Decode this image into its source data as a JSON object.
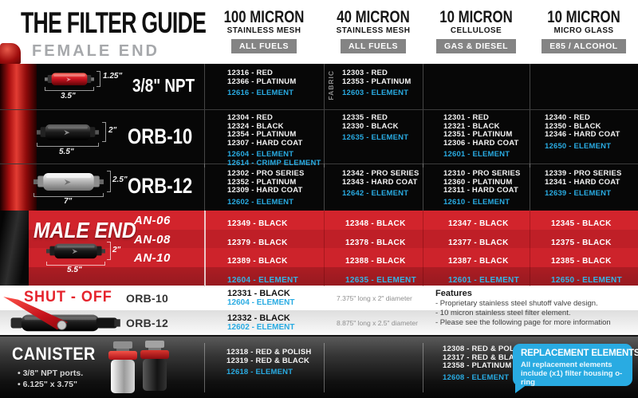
{
  "header": {
    "title": "THE FILTER GUIDE",
    "subtitle": "FEMALE END",
    "columns": [
      {
        "micron": "100 MICRON",
        "media": "STAINLESS MESH",
        "badge": "ALL FUELS"
      },
      {
        "micron": "40 MICRON",
        "media": "STAINLESS MESH",
        "badge": "ALL FUELS"
      },
      {
        "micron": "10 MICRON",
        "media": "CELLULOSE",
        "badge": "GAS & DIESEL"
      },
      {
        "micron": "10 MICRON",
        "media": "MICRO GLASS",
        "badge": "E85 / ALCOHOL"
      }
    ]
  },
  "female_rows": [
    {
      "label": "3/8\" NPT",
      "dim_height": "1.25\"",
      "dim_length": "3.5\"",
      "cells": [
        {
          "parts": [
            "12316 - RED",
            "12366 - PLATINUM"
          ],
          "elements": [
            "12616 - ELEMENT"
          ]
        },
        {
          "note": "FABRIC",
          "parts": [
            "12303 - RED",
            "12353 - PLATINUM"
          ],
          "elements": [
            "12603 - ELEMENT"
          ]
        },
        {
          "parts": [],
          "elements": []
        },
        {
          "parts": [],
          "elements": []
        }
      ]
    },
    {
      "label": "ORB-10",
      "dim_height": "2\"",
      "dim_length": "5.5\"",
      "cells": [
        {
          "parts": [
            "12304 - RED",
            "12324 - BLACK",
            "12354 - PLATINUM",
            "12307 - HARD COAT"
          ],
          "elements": [
            "12604 - ELEMENT",
            "12614 - CRIMP ELEMENT"
          ]
        },
        {
          "parts": [
            "12335 - RED",
            "12330 - BLACK"
          ],
          "elements": [
            "12635 - ELEMENT"
          ]
        },
        {
          "parts": [
            "12301 - RED",
            "12321 - BLACK",
            "12351 - PLATINUM",
            "12306 - HARD COAT"
          ],
          "elements": [
            "12601 - ELEMENT"
          ]
        },
        {
          "parts": [
            "12340 - RED",
            "12350 - BLACK",
            "12346 - HARD COAT"
          ],
          "elements": [
            "12650 - ELEMENT"
          ]
        }
      ]
    },
    {
      "label": "ORB-12",
      "dim_height": "2.5\"",
      "dim_length": "7\"",
      "cells": [
        {
          "parts": [
            "12302 - PRO SERIES",
            "12352 - PLATINUM",
            "12309 - HARD COAT"
          ],
          "elements": [
            "12602 - ELEMENT"
          ]
        },
        {
          "parts": [
            "12342 - PRO SERIES",
            "12343 - HARD COAT"
          ],
          "elements": [
            "12642 - ELEMENT"
          ]
        },
        {
          "parts": [
            "12310 - PRO SERIES",
            "12360 - PLATINUM",
            "12311 - HARD COAT"
          ],
          "elements": [
            "12610 - ELEMENT"
          ]
        },
        {
          "parts": [
            "12339 - PRO SERIES",
            "12341 - HARD COAT"
          ],
          "elements": [
            "12639 - ELEMENT"
          ]
        }
      ]
    }
  ],
  "male_end": {
    "title": "MALE END",
    "dim_height": "2\"",
    "dim_length": "5.5\"",
    "rows": [
      {
        "label": "AN-06",
        "cells": [
          "12349 - BLACK",
          "12348 - BLACK",
          "12347 - BLACK",
          "12345 - BLACK"
        ]
      },
      {
        "label": "AN-08",
        "cells": [
          "12379 - BLACK",
          "12378 - BLACK",
          "12377 - BLACK",
          "12375 - BLACK"
        ]
      },
      {
        "label": "AN-10",
        "cells": [
          "12389 - BLACK",
          "12388 - BLACK",
          "12387 - BLACK",
          "12385 - BLACK"
        ]
      },
      {
        "label": "",
        "cells": [
          "12604 - ELEMENT",
          "12635 - ELEMENT",
          "12601 - ELEMENT",
          "12650 - ELEMENT"
        ]
      }
    ]
  },
  "shut_off": {
    "title": "SHUT - OFF",
    "rows": [
      {
        "label": "ORB-10",
        "part": "12331 - BLACK",
        "element": "12604 - ELEMENT",
        "size": "7.375\" long x 2\" diameter"
      },
      {
        "label": "ORB-12",
        "part": "12332 - BLACK",
        "element": "12602 - ELEMENT",
        "size": "8.875\" long x 2.5\" diameter"
      }
    ],
    "features": {
      "title": "Features",
      "items": [
        "- Proprietary stainless steel shutoff valve design.",
        "- 10 micron stainless steel filter element.",
        "- Please see the following page for more information"
      ]
    }
  },
  "canister": {
    "title": "CANISTER",
    "bullets": [
      "3/8\" NPT ports.",
      "6.125\" x 3.75\""
    ],
    "col_100_micron": {
      "parts": [
        "12318 - RED & POLISH",
        "12319 - RED & BLACK"
      ],
      "elements": [
        "12618 - ELEMENT"
      ]
    },
    "col_10_micron_cellulose": {
      "parts": [
        "12308 - RED & POLISH",
        "12317 - RED & BLACK",
        "12358 - PLATINUM"
      ],
      "elements": [
        "12608 - ELEMENT"
      ]
    },
    "replacement": {
      "title": "REPLACEMENT ELEMENTS",
      "body": "All replacement elements include (x1) filter housing o-ring"
    }
  },
  "colors": {
    "element_blue": "#29ABE2",
    "brand_red": "#C8202A",
    "shutoff_red": "#E5232C",
    "badge_gray": "#848484",
    "subtitle_gray": "#A6A8AB"
  }
}
